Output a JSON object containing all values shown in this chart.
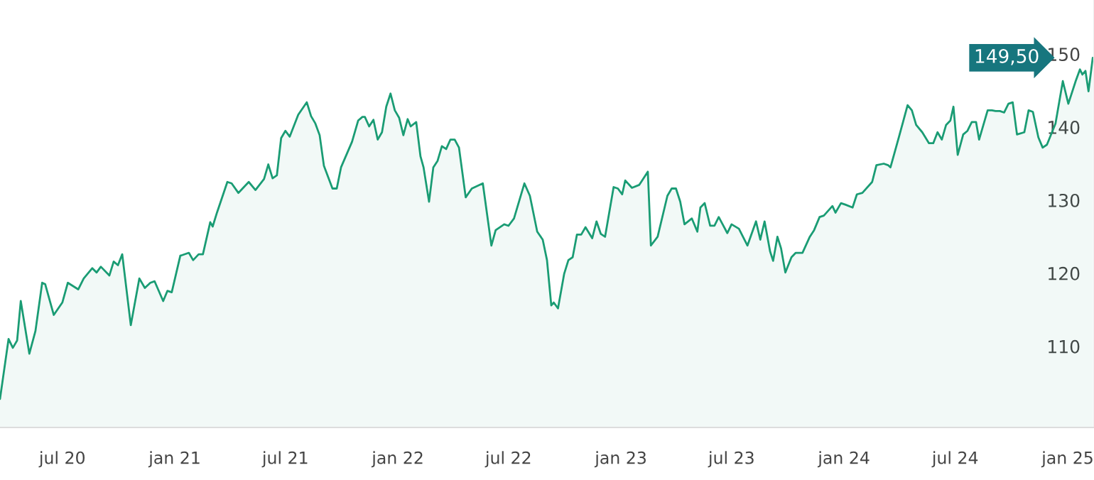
{
  "chart_data": {
    "type": "area",
    "x": [
      "2020-03-21",
      "2020-04-04",
      "2020-04-11",
      "2020-04-18",
      "2020-04-24",
      "2020-05-08",
      "2020-05-18",
      "2020-05-29",
      "2020-06-03",
      "2020-06-17",
      "2020-07-01",
      "2020-07-10",
      "2020-07-27",
      "2020-08-05",
      "2020-08-19",
      "2020-08-26",
      "2020-09-02",
      "2020-09-16",
      "2020-09-23",
      "2020-09-30",
      "2020-10-07",
      "2020-10-21",
      "2020-11-04",
      "2020-11-13",
      "2020-11-22",
      "2020-11-29",
      "2020-12-13",
      "2020-12-20",
      "2020-12-27",
      "2021-01-10",
      "2021-01-24",
      "2021-01-31",
      "2021-02-09",
      "2021-02-16",
      "2021-02-28",
      "2021-03-04",
      "2021-03-11",
      "2021-03-28",
      "2021-04-04",
      "2021-04-15",
      "2021-05-02",
      "2021-05-13",
      "2021-05-27",
      "2021-06-03",
      "2021-06-10",
      "2021-06-17",
      "2021-06-24",
      "2021-07-01",
      "2021-07-08",
      "2021-07-22",
      "2021-08-05",
      "2021-08-12",
      "2021-08-19",
      "2021-08-26",
      "2021-09-02",
      "2021-09-16",
      "2021-09-23",
      "2021-09-30",
      "2021-10-18",
      "2021-10-28",
      "2021-11-04",
      "2021-11-08",
      "2021-11-15",
      "2021-11-22",
      "2021-11-29",
      "2021-12-06",
      "2021-12-13",
      "2021-12-20",
      "2021-12-27",
      "2022-01-03",
      "2022-01-10",
      "2022-01-17",
      "2022-01-22",
      "2022-01-31",
      "2022-02-07",
      "2022-02-12",
      "2022-02-21",
      "2022-02-28",
      "2022-03-07",
      "2022-03-14",
      "2022-03-21",
      "2022-03-28",
      "2022-04-04",
      "2022-04-11",
      "2022-04-22",
      "2022-05-02",
      "2022-05-20",
      "2022-06-03",
      "2022-06-10",
      "2022-06-24",
      "2022-07-01",
      "2022-07-10",
      "2022-07-27",
      "2022-08-05",
      "2022-08-17",
      "2022-08-26",
      "2022-09-02",
      "2022-09-09",
      "2022-09-13",
      "2022-09-20",
      "2022-09-30",
      "2022-10-07",
      "2022-10-14",
      "2022-10-21",
      "2022-10-28",
      "2022-11-04",
      "2022-11-15",
      "2022-11-22",
      "2022-11-29",
      "2022-12-06",
      "2022-12-20",
      "2022-12-27",
      "2023-01-03",
      "2023-01-08",
      "2023-01-19",
      "2023-01-31",
      "2023-02-14",
      "2023-02-19",
      "2023-03-02",
      "2023-03-18",
      "2023-03-25",
      "2023-04-01",
      "2023-04-08",
      "2023-04-15",
      "2023-04-27",
      "2023-05-06",
      "2023-05-11",
      "2023-05-18",
      "2023-05-27",
      "2023-06-03",
      "2023-06-10",
      "2023-06-24",
      "2023-07-01",
      "2023-07-13",
      "2023-07-27",
      "2023-08-10",
      "2023-08-17",
      "2023-08-24",
      "2023-09-02",
      "2023-09-07",
      "2023-09-14",
      "2023-09-20",
      "2023-09-27",
      "2023-10-07",
      "2023-10-14",
      "2023-10-25",
      "2023-11-06",
      "2023-11-13",
      "2023-11-22",
      "2023-11-29",
      "2023-12-13",
      "2023-12-18",
      "2023-12-27",
      "2024-01-03",
      "2024-01-15",
      "2024-01-22",
      "2024-01-31",
      "2024-02-16",
      "2024-02-23",
      "2024-03-06",
      "2024-03-13",
      "2024-03-17",
      "2024-03-31",
      "2024-04-14",
      "2024-04-21",
      "2024-04-28",
      "2024-05-08",
      "2024-05-19",
      "2024-05-26",
      "2024-06-02",
      "2024-06-09",
      "2024-06-16",
      "2024-06-23",
      "2024-06-28",
      "2024-07-05",
      "2024-07-14",
      "2024-07-21",
      "2024-07-28",
      "2024-08-04",
      "2024-08-09",
      "2024-08-23",
      "2024-08-30",
      "2024-09-05",
      "2024-09-12",
      "2024-09-19",
      "2024-09-26",
      "2024-10-03",
      "2024-10-10",
      "2024-10-22",
      "2024-10-29",
      "2024-11-05",
      "2024-11-14",
      "2024-11-21",
      "2024-11-28",
      "2024-12-12",
      "2024-12-24",
      "2025-01-02",
      "2025-01-14",
      "2025-01-21",
      "2025-01-25",
      "2025-01-30",
      "2025-02-04",
      "2025-02-11"
    ],
    "series": [
      {
        "color": "#1a9c74",
        "values": [
          102.8,
          111,
          109.8,
          110.8,
          116.2,
          109,
          112.1,
          118.7,
          118.5,
          114.3,
          116,
          118.7,
          117.8,
          119.3,
          120.7,
          120.1,
          120.9,
          119.7,
          121.6,
          121.1,
          122.6,
          112.9,
          119.3,
          118,
          118.7,
          118.9,
          116.2,
          117.6,
          117.4,
          122.4,
          122.8,
          121.8,
          122.6,
          122.6,
          127,
          126.4,
          128.3,
          132.5,
          132.3,
          131,
          132.5,
          131.4,
          132.9,
          134.9,
          133,
          133.4,
          138.5,
          139.5,
          138.7,
          141.7,
          143.4,
          141.5,
          140.5,
          138.9,
          134.7,
          131.6,
          131.6,
          134.5,
          138,
          140.9,
          141.4,
          141.4,
          140.1,
          141,
          138.3,
          139.3,
          142.8,
          144.6,
          142.3,
          141.3,
          138.9,
          141.1,
          140.1,
          140.7,
          136,
          134.5,
          129.8,
          134.5,
          135.4,
          137.4,
          137,
          138.3,
          138.3,
          137.2,
          130.4,
          131.6,
          132.3,
          123.8,
          125.9,
          126.7,
          126.5,
          127.5,
          132.3,
          130.6,
          125.7,
          124.6,
          121.8,
          115.6,
          116,
          115.2,
          119.9,
          121.8,
          122.2,
          125.3,
          125.3,
          126.3,
          124.8,
          127.1,
          125.4,
          125,
          131.8,
          131.6,
          130.8,
          132.7,
          131.7,
          132.1,
          133.9,
          123.8,
          125,
          130.6,
          131.6,
          131.6,
          129.8,
          126.7,
          127.5,
          125.7,
          129,
          129.6,
          126.5,
          126.5,
          127.7,
          125.5,
          126.7,
          126.1,
          123.8,
          127.1,
          124.6,
          127.1,
          123,
          121.7,
          125,
          123.4,
          120.1,
          122.2,
          122.8,
          122.8,
          125,
          125.9,
          127.7,
          127.9,
          129.2,
          128.3,
          129.6,
          129.4,
          129,
          130.8,
          131,
          132.5,
          134.8,
          135,
          134.8,
          134.5,
          138.7,
          143,
          142.3,
          140.3,
          139.3,
          137.8,
          137.8,
          139.3,
          138.3,
          140.3,
          140.9,
          142.8,
          136.2,
          139,
          139.5,
          140.7,
          140.7,
          138.3,
          142.3,
          142.3,
          142.2,
          142.2,
          142,
          143.2,
          143.4,
          139,
          139.3,
          142.3,
          142.1,
          138.6,
          137.2,
          137.6,
          140.5,
          146.3,
          143.2,
          146.3,
          147.9,
          147.2,
          147.7,
          144.9,
          149.5
        ]
      }
    ],
    "xlim": [
      "2020-03-21",
      "2025-02-13"
    ],
    "xticks": [
      {
        "value": "2020-07-01",
        "label": "jul 20"
      },
      {
        "value": "2021-01-01",
        "label": "jan 21"
      },
      {
        "value": "2021-07-01",
        "label": "jul 21"
      },
      {
        "value": "2022-01-01",
        "label": "jan 22"
      },
      {
        "value": "2022-07-01",
        "label": "jul 22"
      },
      {
        "value": "2023-01-01",
        "label": "jan 23"
      },
      {
        "value": "2023-07-01",
        "label": "jul 23"
      },
      {
        "value": "2024-01-01",
        "label": "jan 24"
      },
      {
        "value": "2024-07-01",
        "label": "jul 24"
      },
      {
        "value": "2025-01-01",
        "label": "jan 25"
      }
    ],
    "ylim": [
      98.9,
      157.4
    ],
    "yticks": [
      110,
      120,
      130,
      140,
      150
    ],
    "annotations": [
      {
        "text": "149,50",
        "x": "2025-02-11",
        "y": 149.5
      }
    ],
    "grid": false
  }
}
